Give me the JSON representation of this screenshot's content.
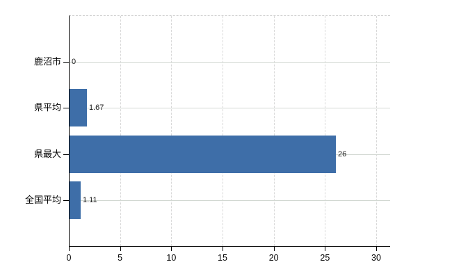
{
  "chart_data": {
    "type": "bar",
    "orientation": "horizontal",
    "title": "",
    "xlabel": "",
    "ylabel": "",
    "categories": [
      "鹿沼市",
      "県平均",
      "県最大",
      "全国平均"
    ],
    "values": [
      0,
      1.67,
      26,
      1.11
    ],
    "value_labels": [
      "0",
      "1.67",
      "26",
      "1.11"
    ],
    "xlim": [
      0,
      30
    ],
    "xticks": [
      0,
      5,
      10,
      15,
      20,
      25,
      30
    ],
    "grid": true,
    "legend": false,
    "bar_color": "#3e6ea8",
    "h_grid_color": "#d2d8d2",
    "v_grid_color": "#d8d8d8",
    "plot_border_top_color": "#cfcfcf",
    "axis_color": "#000000",
    "category_text_color": "#000000",
    "value_text_color": "#1a1a1a"
  }
}
